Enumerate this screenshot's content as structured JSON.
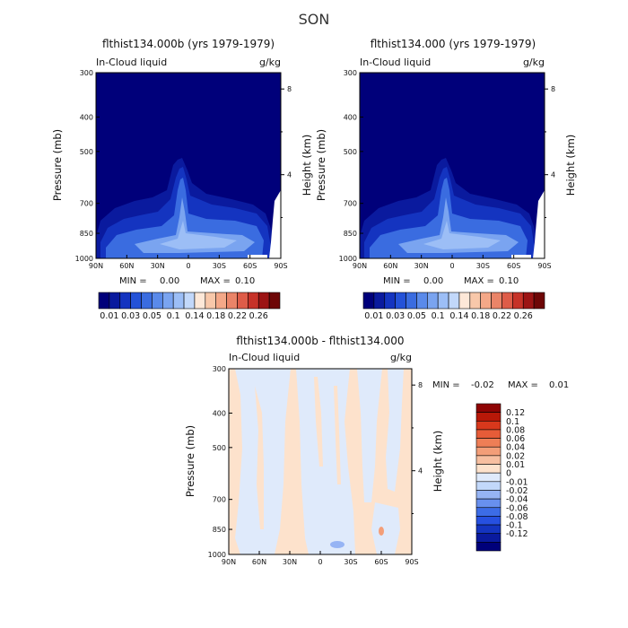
{
  "figure": {
    "title": "SON"
  },
  "chart_data": [
    {
      "type": "heatmap",
      "id": "panel-a",
      "title": "flthist134.000b (yrs 1979-1979)",
      "variable": "In-Cloud liquid",
      "units": "g/kg",
      "xlabel": "",
      "ylabel": "Pressure (mb)",
      "y2label": "Height (km)",
      "x_ticks": [
        "90N",
        "60N",
        "30N",
        "0",
        "30S",
        "60S",
        "90S"
      ],
      "y_ticks": [
        "300",
        "400",
        "500",
        "700",
        "850",
        "1000"
      ],
      "y2_ticks": [
        "8",
        "4"
      ],
      "min_label": "MIN =",
      "min_value": "0.00",
      "max_label": "MAX =",
      "max_value": "0.10",
      "contour_levels": [
        0.01,
        0.03,
        0.05,
        0.1
      ],
      "filled_peak_region": "850 mb near equator and southern mid-latitudes"
    },
    {
      "type": "heatmap",
      "id": "panel-b",
      "title": "flthist134.000 (yrs 1979-1979)",
      "variable": "In-Cloud liquid",
      "units": "g/kg",
      "xlabel": "",
      "ylabel": "Pressure (mb)",
      "y2label": "Height (km)",
      "x_ticks": [
        "90N",
        "60N",
        "30N",
        "0",
        "30S",
        "60S",
        "90S"
      ],
      "y_ticks": [
        "300",
        "400",
        "500",
        "700",
        "850",
        "1000"
      ],
      "y2_ticks": [
        "8",
        "4"
      ],
      "min_label": "MIN =",
      "min_value": "0.00",
      "max_label": "MAX =",
      "max_value": "0.10",
      "contour_levels": [
        0.01,
        0.03,
        0.05,
        0.1
      ]
    },
    {
      "type": "heatmap",
      "id": "panel-diff",
      "title": "flthist134.000b - flthist134.000",
      "variable": "In-Cloud liquid",
      "units": "g/kg",
      "xlabel": "",
      "ylabel": "Pressure (mb)",
      "y2label": "Height (km)",
      "x_ticks": [
        "90N",
        "60N",
        "30N",
        "0",
        "30S",
        "60S",
        "90S"
      ],
      "y_ticks": [
        "300",
        "400",
        "500",
        "700",
        "850",
        "1000"
      ],
      "y2_ticks": [
        "8",
        "4"
      ],
      "min_label": "MIN =",
      "min_value": "-0.02",
      "max_label": "MAX =",
      "max_value": "0.01"
    }
  ],
  "colorbar_main": {
    "colors": [
      "#00007a",
      "#0a1a9e",
      "#1434c0",
      "#2452d8",
      "#3a6ce0",
      "#5a8aea",
      "#7aa4f0",
      "#9cbef6",
      "#c2d8fa",
      "#fde8d8",
      "#f8c8aa",
      "#f4a888",
      "#ea8468",
      "#de5c48",
      "#c63228",
      "#9c1414",
      "#6e0606"
    ],
    "tick_labels": [
      "0.01",
      "0.03",
      "0.05",
      "0.1",
      "0.14",
      "0.18",
      "0.22",
      "0.26"
    ]
  },
  "colorbar_diff": {
    "colors": [
      "#00007a",
      "#0a1a9e",
      "#1434c0",
      "#2650e0",
      "#3c6ce6",
      "#6890ee",
      "#96b4f4",
      "#c2d8fa",
      "#dfeafb",
      "#fde2cc",
      "#f7bfa0",
      "#f39e78",
      "#ee7e56",
      "#e65c38",
      "#d8381c",
      "#b81808",
      "#8e0404"
    ],
    "tick_labels": [
      "0.12",
      "0.1",
      "0.08",
      "0.06",
      "0.04",
      "0.02",
      "0.01",
      "0",
      "-0.01",
      "-0.02",
      "-0.04",
      "-0.06",
      "-0.08",
      "-0.1",
      "-0.12"
    ]
  }
}
